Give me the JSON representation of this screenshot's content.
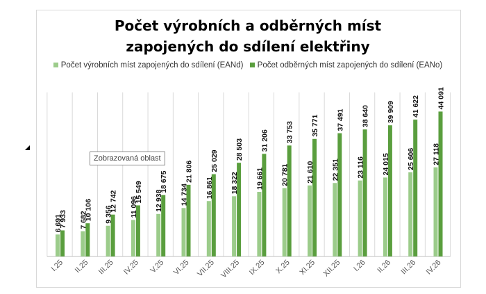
{
  "chart_data": {
    "type": "bar",
    "title": "Počet výrobních a odběrných míst\nzapojených do sdílení elektřiny",
    "categories": [
      "I.25",
      "II.25",
      "III.25",
      "IV.25",
      "V.25",
      "VI.25",
      "VII.25",
      "VIII.25",
      "IX.25",
      "X.25",
      "XI.25",
      "XII.25",
      "I.26",
      "II.26",
      "III.26",
      "IV.26"
    ],
    "series": [
      {
        "name": "Počet výrobních míst zapojených do sdílení (EANd)",
        "color": "#9ccc8b",
        "values": [
          6691,
          7682,
          9356,
          11096,
          12938,
          14734,
          16861,
          18322,
          19661,
          20781,
          21610,
          22351,
          23116,
          24015,
          25606,
          27118
        ],
        "labels": [
          "6 691",
          "7 682",
          "9 356",
          "11 096",
          "12 938",
          "14 734",
          "16 861",
          "18 322",
          "19 661",
          "20 781",
          "21 610",
          "22 351",
          "23 116",
          "24 015",
          "25 606",
          "27 118"
        ]
      },
      {
        "name": "Počet odběrných míst zapojených do sdílení (EANo)",
        "color": "#5a9e3e",
        "values": [
          7933,
          10106,
          12742,
          15549,
          18675,
          21806,
          25029,
          28503,
          31206,
          33753,
          35771,
          37491,
          38640,
          39909,
          41622,
          44091
        ],
        "labels": [
          "7 933",
          "10 106",
          "12 742",
          "15 549",
          "18 675",
          "21 806",
          "25 029",
          "28 503",
          "31 206",
          "33 753",
          "35 771",
          "37 491",
          "38 640",
          "39 909",
          "41 622",
          "44 091"
        ]
      }
    ],
    "ylim": [
      0,
      50000
    ],
    "grid": true,
    "legend_position": "top"
  },
  "tooltip": "Zobrazovaná oblast"
}
